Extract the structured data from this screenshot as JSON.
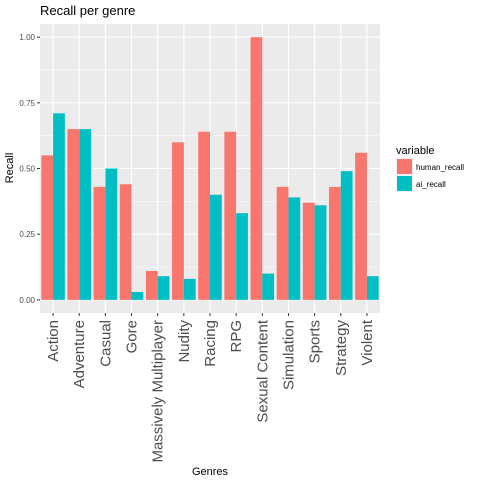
{
  "chart_data": {
    "type": "bar",
    "title": "Recall per genre",
    "xlabel": "Genres",
    "ylabel": "Recall",
    "ylim": [
      -0.05,
      1.05
    ],
    "yticks": [
      "0.00",
      "0.25",
      "0.50",
      "0.75",
      "1.00"
    ],
    "grid": true,
    "legend_position": "right",
    "legend_title": "variable",
    "categories": [
      "Action",
      "Adventure",
      "Casual",
      "Gore",
      "Massively Multiplayer",
      "Nudity",
      "Racing",
      "RPG",
      "Sexual Content",
      "Simulation",
      "Sports",
      "Strategy",
      "Violent"
    ],
    "series": [
      {
        "name": "human_recall",
        "color": "#F8766D",
        "values": [
          0.55,
          0.65,
          0.43,
          0.44,
          0.11,
          0.6,
          0.64,
          0.64,
          1.0,
          0.43,
          0.37,
          0.43,
          0.56
        ]
      },
      {
        "name": "ai_recall",
        "color": "#00BFC4",
        "values": [
          0.71,
          0.65,
          0.5,
          0.03,
          0.09,
          0.08,
          0.4,
          0.33,
          0.1,
          0.39,
          0.36,
          0.49,
          0.09
        ]
      }
    ],
    "panel_color": "#EBEBEB",
    "grid_color": "#FFFFFF"
  }
}
